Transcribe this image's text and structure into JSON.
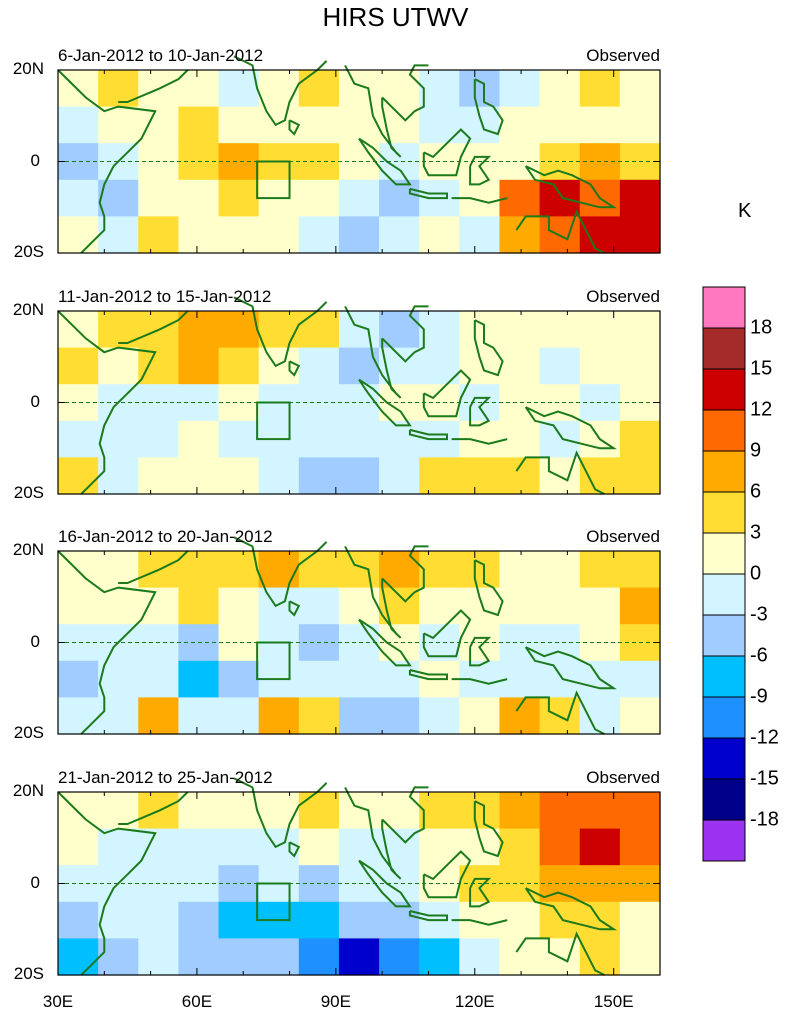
{
  "title": "HIRS UTWV",
  "chart_data": {
    "type": "heatmap",
    "title": "HIRS UTWV",
    "variable_unit": "K",
    "xaxis": {
      "ticks": [
        "30E",
        "60E",
        "90E",
        "120E",
        "150E"
      ],
      "range_deg": [
        30,
        160
      ]
    },
    "yaxis": {
      "ticks": [
        "20N",
        "0",
        "20S"
      ],
      "range_deg": [
        -20,
        20
      ]
    },
    "panels": [
      {
        "date_range": "6-Jan-2012 to 10-Jan-2012",
        "label": "Observed",
        "anomaly_grid_lat_rows_20N_to_20S": [
          [
            0,
            3,
            0,
            0,
            -3,
            0,
            3,
            0,
            0,
            -3,
            -6,
            -3,
            0,
            3,
            0
          ],
          [
            -3,
            0,
            0,
            3,
            0,
            0,
            0,
            0,
            0,
            -3,
            -3,
            0,
            0,
            0,
            0
          ],
          [
            -6,
            -3,
            0,
            3,
            6,
            3,
            3,
            0,
            -3,
            0,
            0,
            0,
            3,
            6,
            3
          ],
          [
            -3,
            -6,
            0,
            0,
            3,
            0,
            0,
            -3,
            -6,
            -3,
            0,
            9,
            12,
            9,
            12
          ],
          [
            0,
            -3,
            3,
            0,
            0,
            0,
            -3,
            -6,
            -3,
            0,
            -3,
            6,
            9,
            12,
            12
          ]
        ]
      },
      {
        "date_range": "11-Jan-2012 to 15-Jan-2012",
        "label": "Observed",
        "anomaly_grid_lat_rows_20N_to_20S": [
          [
            0,
            3,
            3,
            6,
            6,
            3,
            3,
            -3,
            -6,
            -3,
            0,
            0,
            0,
            0,
            0
          ],
          [
            3,
            0,
            3,
            6,
            3,
            0,
            -3,
            -6,
            -3,
            -3,
            0,
            0,
            -3,
            0,
            0
          ],
          [
            0,
            -3,
            -3,
            -3,
            0,
            -3,
            -3,
            -3,
            0,
            0,
            -3,
            0,
            0,
            -3,
            0
          ],
          [
            -3,
            -3,
            -3,
            0,
            -3,
            -3,
            -3,
            -3,
            -3,
            -3,
            0,
            0,
            -3,
            0,
            3
          ],
          [
            3,
            -3,
            0,
            0,
            0,
            -3,
            -6,
            -6,
            -3,
            3,
            3,
            3,
            0,
            3,
            3
          ]
        ]
      },
      {
        "date_range": "16-Jan-2012 to 20-Jan-2012",
        "label": "Observed",
        "anomaly_grid_lat_rows_20N_to_20S": [
          [
            0,
            0,
            3,
            3,
            3,
            6,
            3,
            3,
            6,
            3,
            3,
            0,
            0,
            3,
            3
          ],
          [
            0,
            0,
            0,
            3,
            0,
            -3,
            -3,
            0,
            3,
            0,
            0,
            0,
            0,
            0,
            6
          ],
          [
            -3,
            -3,
            -3,
            -6,
            0,
            -3,
            -6,
            -3,
            0,
            -3,
            0,
            -3,
            -3,
            0,
            3
          ],
          [
            -6,
            -3,
            -3,
            -9,
            -6,
            -3,
            -3,
            -3,
            -3,
            0,
            -3,
            -3,
            -3,
            -3,
            -3
          ],
          [
            -3,
            -3,
            6,
            -3,
            -3,
            6,
            3,
            -6,
            -6,
            -3,
            0,
            6,
            3,
            -3,
            0
          ]
        ]
      },
      {
        "date_range": "21-Jan-2012 to 25-Jan-2012",
        "label": "Observed",
        "anomaly_grid_lat_rows_20N_to_20S": [
          [
            0,
            0,
            3,
            0,
            0,
            0,
            3,
            0,
            0,
            3,
            3,
            6,
            9,
            9,
            9
          ],
          [
            0,
            -3,
            -3,
            -3,
            -3,
            -3,
            0,
            -3,
            -3,
            0,
            0,
            3,
            9,
            12,
            9
          ],
          [
            -3,
            -3,
            -3,
            -3,
            -6,
            -3,
            -6,
            -3,
            -3,
            0,
            3,
            3,
            6,
            6,
            6
          ],
          [
            -6,
            -3,
            -3,
            -6,
            -9,
            -9,
            -9,
            -6,
            -6,
            -3,
            0,
            0,
            3,
            3,
            0
          ],
          [
            -9,
            -6,
            -3,
            -6,
            -6,
            -6,
            -12,
            -15,
            -12,
            -9,
            -3,
            0,
            0,
            3,
            0
          ]
        ]
      }
    ],
    "colorbar": {
      "unit": "K",
      "labels": [
        "18",
        "15",
        "12",
        "9",
        "6",
        "3",
        "0",
        "-3",
        "-6",
        "-9",
        "-12",
        "-15",
        "-18"
      ],
      "colors": [
        "#ff78c0",
        "#a52a2a",
        "#cd0000",
        "#ff6a00",
        "#ffaa00",
        "#ffdd33",
        "#ffffcc",
        "#d2f5ff",
        "#a0ccff",
        "#00bfff",
        "#1e90ff",
        "#0000cd",
        "#00008b",
        "#9a32f0"
      ]
    }
  }
}
